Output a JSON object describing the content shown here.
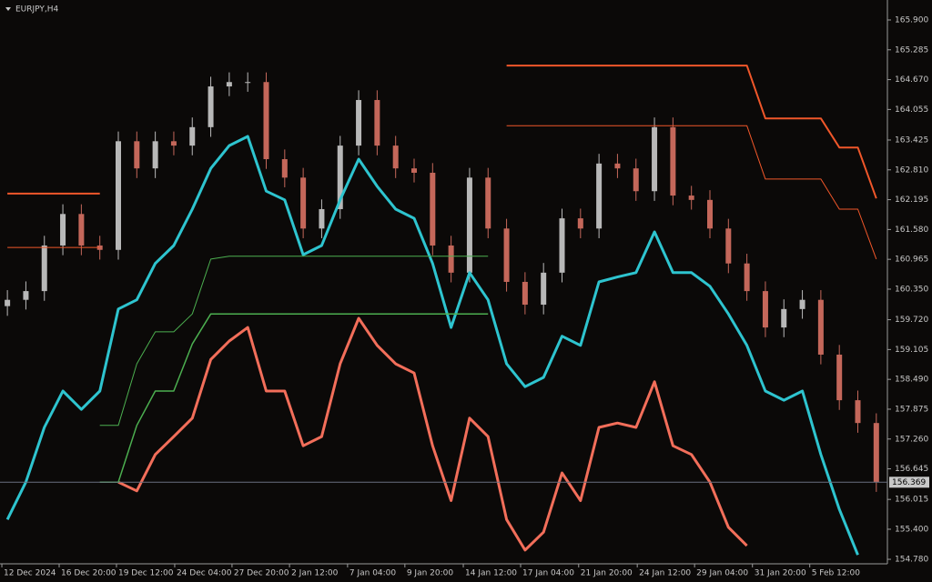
{
  "chart_data": {
    "type": "candlestick",
    "title": "EURJPY,H4",
    "background": "#0b0908",
    "up_color": "#b8b8b8",
    "down_color": "#c4675a",
    "xlim": [
      -0.4,
      47.6
    ],
    "ylim": [
      154.687,
      166.312
    ],
    "xticks": [
      {
        "value": -0.3,
        "label": "12 Dec 2024"
      },
      {
        "value": 2.8,
        "label": "16 Dec 20:00"
      },
      {
        "value": 5.9,
        "label": "19 Dec 12:00"
      },
      {
        "value": 9.05,
        "label": "24 Dec 04:00"
      },
      {
        "value": 12.15,
        "label": "27 Dec 20:00"
      },
      {
        "value": 15.26,
        "label": "2 Jan 12:00"
      },
      {
        "value": 18.4,
        "label": "7 Jan 04:00"
      },
      {
        "value": 21.5,
        "label": "9 Jan 20:00"
      },
      {
        "value": 24.66,
        "label": "14 Jan 12:00"
      },
      {
        "value": 27.76,
        "label": "17 Jan 04:00"
      },
      {
        "value": 30.9,
        "label": "21 Jan 20:00"
      },
      {
        "value": 34.07,
        "label": "24 Jan 12:00"
      },
      {
        "value": 37.17,
        "label": "29 Jan 04:00"
      },
      {
        "value": 40.3,
        "label": "31 Jan 20:00"
      },
      {
        "value": 43.4,
        "label": "5 Feb 12:00"
      }
    ],
    "yticks": [
      {
        "value": 165.9,
        "label": "165.900"
      },
      {
        "value": 165.285,
        "label": "165.285"
      },
      {
        "value": 164.67,
        "label": "164.670"
      },
      {
        "value": 164.055,
        "label": "164.055"
      },
      {
        "value": 163.425,
        "label": "163.425"
      },
      {
        "value": 162.81,
        "label": "162.810"
      },
      {
        "value": 162.195,
        "label": "162.195"
      },
      {
        "value": 161.58,
        "label": "161.580"
      },
      {
        "value": 160.965,
        "label": "160.965"
      },
      {
        "value": 160.35,
        "label": "160.350"
      },
      {
        "value": 159.72,
        "label": "159.720"
      },
      {
        "value": 159.105,
        "label": "159.105"
      },
      {
        "value": 158.49,
        "label": "158.490"
      },
      {
        "value": 157.875,
        "label": "157.875"
      },
      {
        "value": 157.26,
        "label": "157.260"
      },
      {
        "value": 156.645,
        "label": "156.645"
      },
      {
        "value": 156.015,
        "label": "156.015"
      },
      {
        "value": 155.4,
        "label": "155.400"
      },
      {
        "value": 154.78,
        "label": "154.780"
      }
    ],
    "last_price": {
      "value": 156.369,
      "label": "156.369"
    },
    "open": [
      160.0,
      160.13,
      160.31,
      161.25,
      161.9,
      161.25,
      161.16,
      163.4,
      162.84,
      163.4,
      163.31,
      163.69,
      164.53,
      164.62,
      164.62,
      163.03,
      162.65,
      161.6,
      162.0,
      163.31,
      164.25,
      163.31,
      162.84,
      162.75,
      161.25,
      160.69,
      162.65,
      161.6,
      160.5,
      160.03,
      160.69,
      161.81,
      161.6,
      162.94,
      162.84,
      162.37,
      163.69,
      162.28,
      162.19,
      161.6,
      160.88,
      160.31,
      159.56,
      159.94,
      160.13,
      159.0,
      158.06,
      157.59
    ],
    "high": [
      160.33,
      160.51,
      161.45,
      162.1,
      162.1,
      161.45,
      163.6,
      163.6,
      163.6,
      163.6,
      163.89,
      164.73,
      164.82,
      164.82,
      164.82,
      163.23,
      162.85,
      162.2,
      163.51,
      164.45,
      164.45,
      163.51,
      163.04,
      162.95,
      161.45,
      162.85,
      162.85,
      161.8,
      160.7,
      160.89,
      162.01,
      162.01,
      163.14,
      163.14,
      163.04,
      163.89,
      163.89,
      162.48,
      162.39,
      161.8,
      161.08,
      160.51,
      160.14,
      160.33,
      160.33,
      159.2,
      158.26,
      157.79
    ],
    "low": [
      159.8,
      159.93,
      160.11,
      161.05,
      161.05,
      160.96,
      160.96,
      162.64,
      162.64,
      163.11,
      163.11,
      163.49,
      164.33,
      164.42,
      162.83,
      162.45,
      161.4,
      161.4,
      161.8,
      163.11,
      163.11,
      162.64,
      162.55,
      161.05,
      160.49,
      160.49,
      161.4,
      160.3,
      159.83,
      159.83,
      160.49,
      161.4,
      161.4,
      162.64,
      162.17,
      162.17,
      162.08,
      161.99,
      161.4,
      160.68,
      160.11,
      159.36,
      159.36,
      159.74,
      158.8,
      157.86,
      157.39,
      156.17
    ],
    "close": [
      160.13,
      160.31,
      161.25,
      161.9,
      161.25,
      161.16,
      163.4,
      162.84,
      163.4,
      163.31,
      163.69,
      164.53,
      164.62,
      164.62,
      163.03,
      162.65,
      161.6,
      162.0,
      163.31,
      164.25,
      163.31,
      162.84,
      162.75,
      161.25,
      160.69,
      162.65,
      161.6,
      160.5,
      160.03,
      160.69,
      161.81,
      161.6,
      162.94,
      162.84,
      162.37,
      163.69,
      162.28,
      162.19,
      161.6,
      160.88,
      160.31,
      159.56,
      159.94,
      160.13,
      159.0,
      158.06,
      157.59,
      156.37
    ],
    "series": [
      {
        "color": "#2ec4cf",
        "width": 3,
        "values": [
          155.6,
          156.37,
          157.5,
          158.25,
          157.87,
          158.25,
          159.94,
          160.13,
          160.88,
          161.25,
          162.0,
          162.84,
          163.31,
          163.5,
          162.37,
          162.19,
          161.06,
          161.25,
          162.19,
          163.03,
          162.47,
          162.0,
          161.81,
          160.88,
          159.56,
          160.69,
          160.13,
          158.81,
          158.34,
          158.53,
          159.38,
          159.19,
          160.5,
          160.6,
          160.69,
          161.53,
          160.69,
          160.69,
          160.41,
          159.84,
          159.19,
          158.25,
          158.06,
          158.25,
          156.94,
          155.81,
          154.87,
          null
        ]
      },
      {
        "color": "#f26e5a",
        "width": 3,
        "values": [
          null,
          null,
          null,
          null,
          null,
          null,
          156.37,
          156.19,
          156.94,
          157.31,
          157.69,
          158.9,
          159.28,
          159.56,
          158.25,
          158.25,
          157.12,
          157.31,
          158.81,
          159.75,
          159.19,
          158.81,
          158.62,
          157.12,
          155.99,
          157.69,
          157.31,
          155.6,
          154.97,
          155.34,
          156.56,
          155.99,
          157.5,
          157.59,
          157.5,
          158.44,
          157.12,
          156.94,
          156.37,
          155.44,
          155.06,
          null,
          null,
          null,
          null,
          null,
          null,
          null
        ]
      },
      {
        "color": "#4caf50",
        "width": 1,
        "values": [
          null,
          null,
          null,
          null,
          null,
          157.54,
          157.54,
          158.81,
          159.47,
          159.47,
          159.84,
          160.97,
          161.03,
          161.03,
          161.03,
          161.03,
          161.03,
          161.03,
          161.03,
          161.03,
          161.03,
          161.03,
          161.03,
          161.03,
          161.03,
          161.03,
          161.03,
          null,
          null,
          null,
          null,
          null,
          null,
          null,
          null,
          null,
          null,
          null,
          null,
          null,
          null,
          null,
          null,
          null,
          null,
          null,
          null,
          null
        ]
      },
      {
        "color": "#4caf50",
        "width": 1.5,
        "values": [
          null,
          null,
          null,
          null,
          null,
          156.37,
          156.37,
          157.54,
          158.25,
          158.25,
          159.22,
          159.84,
          159.84,
          159.84,
          159.84,
          159.84,
          159.84,
          159.84,
          159.84,
          159.84,
          159.84,
          159.84,
          159.84,
          159.84,
          159.84,
          159.84,
          159.84,
          null,
          null,
          null,
          null,
          null,
          null,
          null,
          null,
          null,
          null,
          null,
          null,
          null,
          null,
          null,
          null,
          null,
          null,
          null,
          null,
          null
        ]
      },
      {
        "color": "#f0572a",
        "width": 2,
        "values": [
          162.32,
          162.32,
          162.32,
          162.32,
          162.32,
          162.32,
          null,
          null,
          null,
          null,
          null,
          null,
          null,
          null,
          null,
          null,
          null,
          null,
          null,
          null,
          null,
          null,
          null,
          null,
          null,
          null,
          null,
          164.96,
          164.96,
          164.96,
          164.96,
          164.96,
          164.96,
          164.96,
          164.96,
          164.96,
          164.96,
          164.96,
          164.96,
          164.96,
          164.96,
          163.87,
          163.87,
          163.87,
          163.87,
          163.27,
          163.27,
          162.22
        ]
      },
      {
        "color": "#f0572a",
        "width": 1,
        "values": [
          161.21,
          161.21,
          161.21,
          161.21,
          161.21,
          161.21,
          null,
          null,
          null,
          null,
          null,
          null,
          null,
          null,
          null,
          null,
          null,
          null,
          null,
          null,
          null,
          null,
          null,
          null,
          null,
          null,
          null,
          163.72,
          163.72,
          163.72,
          163.72,
          163.72,
          163.72,
          163.72,
          163.72,
          163.72,
          163.72,
          163.72,
          163.72,
          163.72,
          163.72,
          162.62,
          162.62,
          162.62,
          162.62,
          162.0,
          162.0,
          160.97
        ]
      }
    ]
  }
}
